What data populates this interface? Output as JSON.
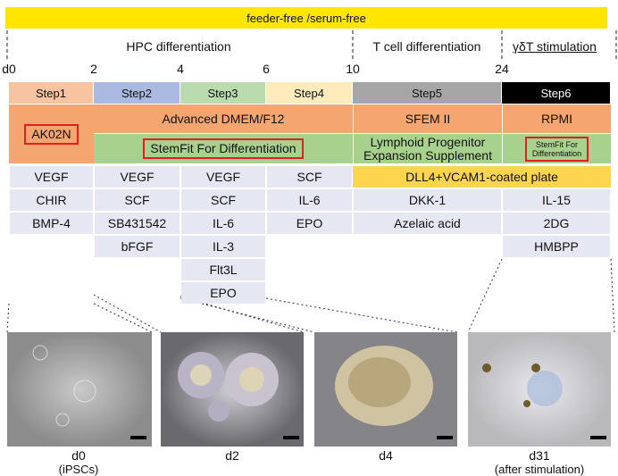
{
  "banner": "feeder-free /serum-free",
  "phases": [
    "HPC differentiation",
    "T cell differentiation",
    "γδT stimulation"
  ],
  "days": [
    "d0",
    "2",
    "4",
    "6",
    "10",
    "24"
  ],
  "steps": [
    "Step1",
    "Step2",
    "Step3",
    "Step4",
    "Step5",
    "Step6"
  ],
  "media": {
    "cell_line": "AK02N",
    "basal": "Advanced DMEM/F12",
    "sfem": "SFEM II",
    "rpmi": "RPMI",
    "stemfit": "StemFit For Differentiation",
    "lymphoid": [
      "Lymphoid Progenitor",
      "Expansion Supplement"
    ],
    "stemfit_small": [
      "StemFit For",
      "Differentiation"
    ]
  },
  "factors": {
    "coating": "DLL4+VCAM1-coated plate",
    "columns": [
      [
        "VEGF",
        "CHIR",
        "BMP-4"
      ],
      [
        "VEGF",
        "SCF",
        "SB431542",
        "bFGF"
      ],
      [
        "VEGF",
        "SCF",
        "IL-6",
        "IL-3",
        "Flt3L",
        "EPO"
      ],
      [
        "SCF",
        "IL-6",
        "EPO"
      ],
      [
        "DKK-1",
        "Azelaic acid"
      ],
      [
        "IL-15",
        "2DG",
        "HMBPP"
      ]
    ]
  },
  "images": [
    {
      "label": "d0",
      "note": "(iPSCs)"
    },
    {
      "label": "d2"
    },
    {
      "label": "d4"
    },
    {
      "label": "d31",
      "note": "(after stimulation)"
    }
  ]
}
